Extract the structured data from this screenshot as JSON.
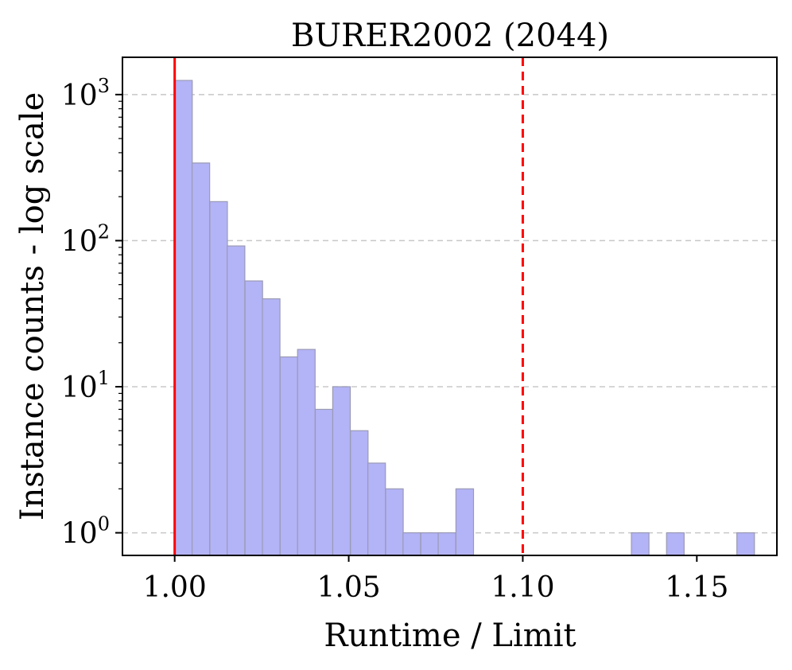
{
  "chart_data": {
    "type": "bar",
    "title": "BURER2002 (2044)",
    "xlabel": "Runtime / Limit",
    "ylabel": "Instance counts - log scale",
    "yscale": "log",
    "xlim": [
      0.985,
      1.173
    ],
    "ylim": [
      0.7,
      1800
    ],
    "xticks": [
      {
        "value": 1.0,
        "label": "1.00"
      },
      {
        "value": 1.05,
        "label": "1.05"
      },
      {
        "value": 1.1,
        "label": "1.10"
      },
      {
        "value": 1.15,
        "label": "1.15"
      }
    ],
    "yticks": [
      {
        "value": 1,
        "base": "10",
        "exp": "0"
      },
      {
        "value": 10,
        "base": "10",
        "exp": "1"
      },
      {
        "value": 100,
        "base": "10",
        "exp": "2"
      },
      {
        "value": 1000,
        "base": "10",
        "exp": "3"
      }
    ],
    "grid": "y-major-dashed",
    "bin_width": 0.00505,
    "bins": [
      {
        "x0": 1.0,
        "count": 1250
      },
      {
        "x0": 1.005,
        "count": 340
      },
      {
        "x0": 1.0101,
        "count": 185
      },
      {
        "x0": 1.0151,
        "count": 92
      },
      {
        "x0": 1.0202,
        "count": 53
      },
      {
        "x0": 1.0252,
        "count": 40
      },
      {
        "x0": 1.0303,
        "count": 16
      },
      {
        "x0": 1.0353,
        "count": 18
      },
      {
        "x0": 1.0404,
        "count": 7
      },
      {
        "x0": 1.0454,
        "count": 10
      },
      {
        "x0": 1.0505,
        "count": 5
      },
      {
        "x0": 1.0555,
        "count": 3
      },
      {
        "x0": 1.0606,
        "count": 2
      },
      {
        "x0": 1.0656,
        "count": 1
      },
      {
        "x0": 1.0707,
        "count": 1
      },
      {
        "x0": 1.0757,
        "count": 1
      },
      {
        "x0": 1.0808,
        "count": 2
      },
      {
        "x0": 1.1312,
        "count": 1
      },
      {
        "x0": 1.1413,
        "count": 1
      },
      {
        "x0": 1.1615,
        "count": 1
      }
    ],
    "reference_lines": [
      {
        "x": 1.0,
        "style": "solid",
        "color": "#ff0000"
      },
      {
        "x": 1.1,
        "style": "dashed",
        "color": "#ff0000"
      }
    ],
    "bar_color": "#b3b3f7"
  }
}
